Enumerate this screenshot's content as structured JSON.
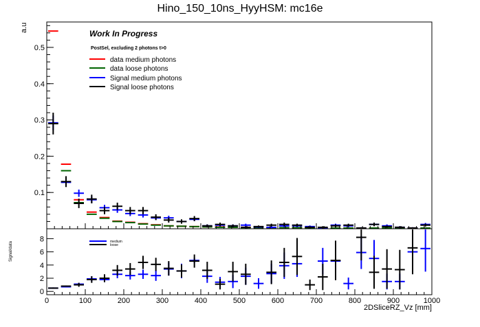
{
  "title": "Hino_150_10ns_HyyHSM: mc16e",
  "annotation": "Work In Progress",
  "selection": "PostSel, excluding 2 photons t>0",
  "chart_data": [
    {
      "type": "histogram",
      "ylabel": "a.u",
      "xlim": [
        0,
        1000
      ],
      "ylim": [
        0,
        0.57
      ],
      "bin_width": 33.33,
      "yticks": [
        0.1,
        0.2,
        0.3,
        0.4,
        0.5
      ],
      "legend": "top-left",
      "series": [
        {
          "name": "data medium photons",
          "color": "#ff0000",
          "style": "step",
          "values": [
            0.545,
            0.178,
            0.08,
            0.046,
            0.031,
            0.021,
            0.018,
            0.014,
            0.011,
            0.008,
            0.007,
            0.006,
            0.005,
            0.005,
            0.004,
            0.004,
            0.003,
            0.003,
            0.003,
            0.003,
            0.002,
            0.002,
            0.002,
            0.002,
            0.002,
            0.002,
            0.002,
            0.002,
            0.002,
            0.002
          ]
        },
        {
          "name": "data loose photons",
          "color": "#006400",
          "style": "step",
          "values": [
            0.29,
            0.16,
            0.072,
            0.04,
            0.029,
            0.02,
            0.017,
            0.013,
            0.01,
            0.008,
            0.007,
            0.006,
            0.005,
            0.004,
            0.004,
            0.003,
            0.003,
            0.003,
            0.003,
            0.003,
            0.002,
            0.002,
            0.002,
            0.002,
            0.002,
            0.002,
            0.002,
            0.002,
            0.002,
            0.002
          ]
        },
        {
          "name": "Signal medium photons",
          "color": "#0000ff",
          "style": "errorbar",
          "values": [
            0.292,
            0.128,
            0.098,
            0.08,
            0.058,
            0.052,
            0.042,
            0.038,
            0.03,
            0.03,
            0.02,
            0.026,
            0.008,
            0.01,
            0.008,
            0.01,
            0.005,
            0.004,
            0.008,
            0.008,
            0.006,
            0.002,
            0.01,
            0.008,
            0.002,
            0.012,
            0.008,
            0.004,
            0.002,
            0.012
          ],
          "errors": [
            0.02,
            0.012,
            0.01,
            0.009,
            0.008,
            0.008,
            0.007,
            0.007,
            0.006,
            0.006,
            0.005,
            0.005,
            0.004,
            0.004,
            0.004,
            0.004,
            0.003,
            0.003,
            0.004,
            0.004,
            0.003,
            0.002,
            0.004,
            0.004,
            0.002,
            0.004,
            0.004,
            0.003,
            0.002,
            0.004
          ]
        },
        {
          "name": "Signal loose photons",
          "color": "#000000",
          "style": "errorbar",
          "values": [
            0.29,
            0.13,
            0.07,
            0.082,
            0.05,
            0.062,
            0.05,
            0.05,
            0.032,
            0.024,
            0.02,
            0.028,
            0.008,
            0.012,
            0.008,
            0.004,
            0.006,
            0.01,
            0.012,
            0.01,
            0.004,
            0.004,
            0.008,
            0.01,
            0.002,
            0.012,
            0.006,
            0.004,
            0.002,
            0.01
          ],
          "errors": [
            0.03,
            0.015,
            0.013,
            0.012,
            0.01,
            0.01,
            0.01,
            0.01,
            0.008,
            0.007,
            0.006,
            0.007,
            0.004,
            0.005,
            0.004,
            0.003,
            0.003,
            0.004,
            0.005,
            0.004,
            0.003,
            0.003,
            0.004,
            0.004,
            0.002,
            0.005,
            0.003,
            0.003,
            0.002,
            0.004
          ]
        }
      ]
    },
    {
      "type": "histogram",
      "ylabel": "Signal/data",
      "xlabel": "2DSliceRZ_Vz [mm]",
      "xlim": [
        0,
        1000
      ],
      "ylim": [
        -0.5,
        9.5
      ],
      "xticks": [
        0,
        100,
        200,
        300,
        400,
        500,
        600,
        700,
        800,
        900,
        1000
      ],
      "yticks": [
        0,
        2,
        4,
        6,
        8
      ],
      "series": [
        {
          "name": "medium",
          "color": "#0000ff",
          "style": "errorbar",
          "values": [
            0.5,
            0.7,
            1.1,
            1.9,
            1.8,
            2.6,
            2.4,
            2.6,
            2.4,
            3.4,
            3.1,
            4.7,
            2.3,
            1.4,
            1.5,
            2.3,
            1.2,
            2.7,
            3.9,
            4.2,
            null,
            4.6,
            4.6,
            1.2,
            5.9,
            5.0,
            1.5,
            1.5,
            6.0,
            6.5
          ],
          "errors": [
            0.1,
            0.1,
            0.2,
            0.4,
            0.4,
            0.6,
            0.6,
            0.7,
            0.8,
            1.0,
            1.1,
            0.4,
            1.0,
            0.8,
            1.0,
            1.3,
            0.8,
            1.5,
            2.0,
            2.0,
            null,
            2.0,
            2.3,
            0.9,
            2.5,
            2.8,
            1.2,
            1.2,
            3.0,
            3.5
          ]
        },
        {
          "name": "loose",
          "color": "#000000",
          "style": "errorbar",
          "values": [
            0.5,
            0.8,
            1.0,
            1.8,
            2.0,
            3.2,
            3.4,
            4.4,
            4.1,
            3.5,
            3.1,
            4.6,
            3.2,
            1.1,
            3.0,
            2.6,
            null,
            2.9,
            4.4,
            5.3,
            1.0,
            2.2,
            4.7,
            null,
            8.2,
            2.9,
            3.4,
            3.3,
            6.6,
            null
          ],
          "errors": [
            0.1,
            0.1,
            0.3,
            0.5,
            0.6,
            0.8,
            0.9,
            1.0,
            1.0,
            1.1,
            1.0,
            1.0,
            1.3,
            0.8,
            1.5,
            1.6,
            null,
            1.8,
            2.2,
            2.8,
            0.8,
            2.0,
            3.0,
            null,
            3.5,
            2.5,
            3.0,
            3.0,
            4.0,
            null
          ]
        }
      ]
    }
  ],
  "legend2": [
    "medium",
    "loose"
  ]
}
